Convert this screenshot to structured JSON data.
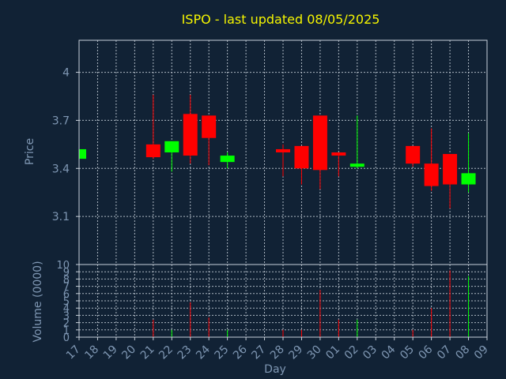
{
  "chart_data": {
    "type": "candlestick",
    "title": "ISPO - last updated 08/05/2025",
    "xlabel": "Day",
    "colors": {
      "background": "#112235",
      "grid": "#c8d0da",
      "axis_text": "#7f97b3",
      "title": "#f5f500",
      "up": "#00ff00",
      "down": "#ff0000"
    },
    "x_ticks": [
      "17",
      "18",
      "19",
      "20",
      "21",
      "22",
      "23",
      "24",
      "25",
      "26",
      "27",
      "28",
      "29",
      "30",
      "01",
      "02",
      "03",
      "04",
      "05",
      "06",
      "07",
      "08",
      "09"
    ],
    "price_panel": {
      "ylabel": "Price",
      "ylim": [
        2.8,
        4.2
      ],
      "y_ticks": [
        3.1,
        3.4,
        3.7,
        4
      ],
      "y_tick_labels": [
        "3.1",
        "3.4",
        "3.7",
        "4"
      ],
      "candles": [
        {
          "day": "17",
          "open": 3.46,
          "close": 3.52,
          "high": 3.52,
          "low": 3.46
        },
        {
          "day": "21",
          "open": 3.55,
          "close": 3.47,
          "high": 3.86,
          "low": 3.46
        },
        {
          "day": "22",
          "open": 3.5,
          "close": 3.57,
          "high": 3.57,
          "low": 3.38
        },
        {
          "day": "23",
          "open": 3.74,
          "close": 3.48,
          "high": 3.86,
          "low": 3.43
        },
        {
          "day": "24",
          "open": 3.73,
          "close": 3.59,
          "high": 3.73,
          "low": 3.42
        },
        {
          "day": "25",
          "open": 3.44,
          "close": 3.48,
          "high": 3.5,
          "low": 3.4
        },
        {
          "day": "28",
          "open": 3.52,
          "close": 3.5,
          "high": 3.55,
          "low": 3.35
        },
        {
          "day": "29",
          "open": 3.54,
          "close": 3.4,
          "high": 3.54,
          "low": 3.3
        },
        {
          "day": "30",
          "open": 3.73,
          "close": 3.39,
          "high": 3.73,
          "low": 3.27
        },
        {
          "day": "01",
          "open": 3.5,
          "close": 3.48,
          "high": 3.5,
          "low": 3.35
        },
        {
          "day": "02",
          "open": 3.41,
          "close": 3.43,
          "high": 3.73,
          "low": 3.4
        },
        {
          "day": "05",
          "open": 3.54,
          "close": 3.43,
          "high": 3.54,
          "low": 3.41
        },
        {
          "day": "06",
          "open": 3.43,
          "close": 3.29,
          "high": 3.65,
          "low": 3.26
        },
        {
          "day": "07",
          "open": 3.49,
          "close": 3.3,
          "high": 3.49,
          "low": 3.15
        },
        {
          "day": "08",
          "open": 3.3,
          "close": 3.37,
          "high": 3.62,
          "low": 3.25
        }
      ]
    },
    "volume_panel": {
      "ylabel": "Volume (0000)",
      "ylim": [
        0,
        10
      ],
      "y_ticks": [
        0,
        1,
        2,
        3,
        4,
        5,
        6,
        7,
        8,
        9,
        10
      ],
      "y_tick_labels": [
        "0",
        "1",
        "2",
        "3",
        "4",
        "5",
        "6",
        "7",
        "8",
        "9",
        "10"
      ],
      "volumes": [
        {
          "day": "21",
          "value": 2.4
        },
        {
          "day": "22",
          "value": 1.0
        },
        {
          "day": "23",
          "value": 4.8
        },
        {
          "day": "24",
          "value": 2.7
        },
        {
          "day": "25",
          "value": 1.0
        },
        {
          "day": "28",
          "value": 1.0
        },
        {
          "day": "29",
          "value": 1.0
        },
        {
          "day": "30",
          "value": 6.5
        },
        {
          "day": "01",
          "value": 2.4
        },
        {
          "day": "02",
          "value": 2.4
        },
        {
          "day": "05",
          "value": 1.0
        },
        {
          "day": "06",
          "value": 4.0
        },
        {
          "day": "07",
          "value": 9.2
        },
        {
          "day": "08",
          "value": 8.4
        }
      ]
    }
  }
}
